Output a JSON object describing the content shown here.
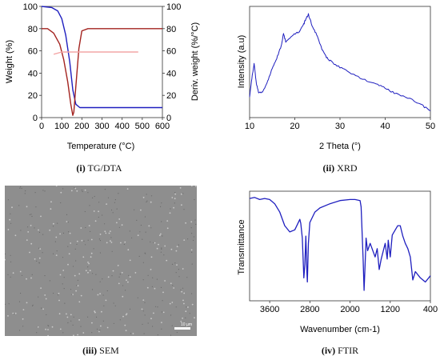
{
  "chart_data": [
    {
      "type": "line",
      "panel": "TG/DTA",
      "xlabel": "Temperature (°C)",
      "ylabel": "Weight (%)",
      "y2label": "Deriv. weight (%/°C)",
      "xlim": [
        0,
        600
      ],
      "ylim": [
        0,
        100
      ],
      "y2lim": [
        0,
        100
      ],
      "xticks": [
        0,
        100,
        200,
        300,
        400,
        500,
        600
      ],
      "yticks": [
        0,
        20,
        40,
        60,
        80,
        100
      ],
      "y2ticks": [
        0,
        20,
        40,
        60,
        80,
        100
      ],
      "series": [
        {
          "color": "#1f1fbf",
          "x": [
            0,
            50,
            80,
            100,
            120,
            140,
            155,
            170,
            190,
            220,
            300,
            600
          ],
          "y": [
            100,
            99,
            96,
            89,
            74,
            50,
            25,
            12,
            9,
            9,
            9,
            9
          ]
        },
        {
          "color": "#a3231f",
          "x": [
            0,
            30,
            60,
            90,
            110,
            130,
            145,
            155,
            160,
            170,
            185,
            200,
            230,
            300,
            600
          ],
          "y": [
            80,
            80,
            76,
            66,
            52,
            32,
            12,
            2,
            5,
            28,
            62,
            78,
            80,
            80,
            80
          ]
        },
        {
          "color": "#f4a6a6",
          "x": [
            60,
            100,
            200,
            300,
            400,
            480
          ],
          "y": [
            57,
            59,
            59,
            59,
            59,
            59
          ]
        }
      ]
    },
    {
      "type": "line",
      "panel": "XRD",
      "xlabel": "2 Theta (°)",
      "ylabel": "Intensity (a.u)",
      "xlim": [
        10,
        50
      ],
      "xticks": [
        10,
        20,
        30,
        40,
        50
      ],
      "series": [
        {
          "color": "#1f1fbf",
          "x": [
            10,
            10.5,
            11,
            11.5,
            12,
            13,
            14,
            15,
            16,
            17,
            17.5,
            18,
            19,
            20,
            21,
            22,
            22.5,
            23,
            24,
            25,
            26,
            27,
            28,
            30,
            32,
            35,
            38,
            40,
            42,
            45,
            48,
            50
          ],
          "y": [
            0.15,
            0.35,
            0.5,
            0.3,
            0.2,
            0.22,
            0.32,
            0.45,
            0.55,
            0.68,
            0.8,
            0.72,
            0.76,
            0.8,
            0.82,
            0.9,
            0.96,
            1.0,
            0.86,
            0.78,
            0.64,
            0.56,
            0.52,
            0.46,
            0.41,
            0.34,
            0.29,
            0.25,
            0.2,
            0.15,
            0.08,
            0.02
          ]
        }
      ]
    },
    {
      "type": "line",
      "panel": "FTIR",
      "xlabel": "Wavenumber (cm-1)",
      "ylabel": "Transmittance",
      "xlim": [
        4000,
        400
      ],
      "xticks": [
        3600,
        2800,
        2000,
        1200,
        400
      ],
      "series": [
        {
          "color": "#1f1fbf",
          "x": [
            4000,
            3900,
            3800,
            3700,
            3600,
            3500,
            3400,
            3300,
            3200,
            3100,
            3000,
            2980,
            2950,
            2920,
            2900,
            2880,
            2860,
            2850,
            2830,
            2800,
            2700,
            2600,
            2400,
            2200,
            2000,
            1900,
            1800,
            1780,
            1740,
            1720,
            1700,
            1680,
            1650,
            1600,
            1500,
            1460,
            1420,
            1380,
            1300,
            1260,
            1240,
            1200,
            1160,
            1100,
            1050,
            1000,
            950,
            900,
            850,
            800,
            750,
            700,
            600,
            500,
            400
          ],
          "y": [
            98,
            99,
            97,
            98,
            97,
            93,
            85,
            72,
            66,
            68,
            78,
            74,
            60,
            22,
            35,
            62,
            28,
            18,
            55,
            75,
            85,
            89,
            93,
            96,
            97,
            97,
            96,
            90,
            40,
            10,
            35,
            60,
            48,
            55,
            42,
            50,
            30,
            40,
            55,
            40,
            58,
            42,
            63,
            68,
            72,
            72,
            62,
            55,
            50,
            42,
            20,
            28,
            22,
            18,
            24
          ]
        }
      ]
    }
  ],
  "captions": {
    "tg_num": "(i)",
    "tg_label": "TG/DTA",
    "xrd_num": "(ii)",
    "xrd_label": "XRD",
    "sem_num": "(iii)",
    "sem_label": "SEM",
    "ftir_num": "(iv)",
    "ftir_label": "FTIR"
  },
  "sem": {
    "scale_label": "10 µm"
  }
}
